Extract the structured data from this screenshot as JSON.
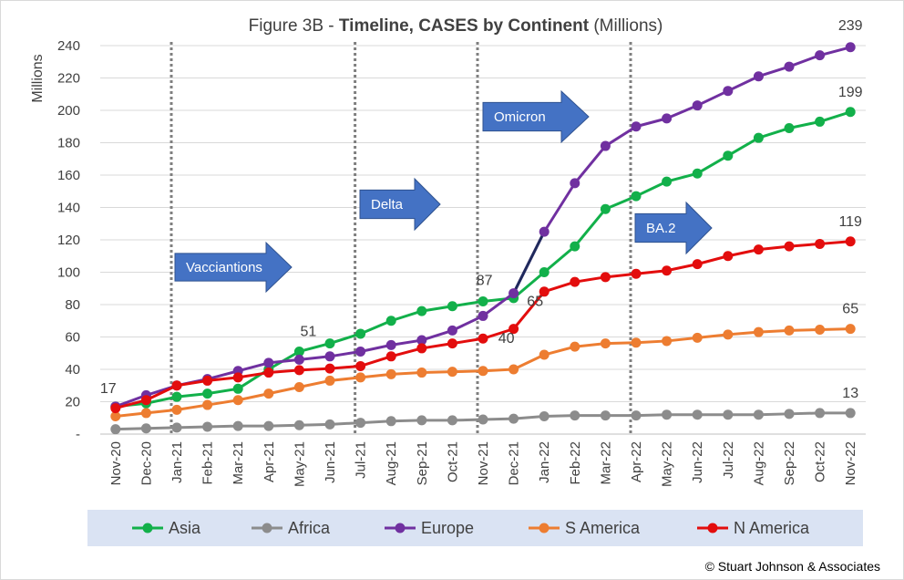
{
  "chart_data": {
    "type": "line",
    "title_prefix": "Figure 3B - ",
    "title_bold": "Timeline, CASES by Continent",
    "title_suffix": " (Millions)",
    "ylabel": "Millions",
    "ylim": [
      0,
      240
    ],
    "yticks": [
      "-",
      "20",
      "40",
      "60",
      "80",
      "100",
      "120",
      "140",
      "160",
      "180",
      "200",
      "220",
      "240"
    ],
    "grid": true,
    "legend_position": "bottom",
    "categories": [
      "Nov-20",
      "Dec-20",
      "Jan-21",
      "Feb-21",
      "Mar-21",
      "Apr-21",
      "May-21",
      "Jun-21",
      "Jul-21",
      "Aug-21",
      "Sep-21",
      "Oct-21",
      "Nov-21",
      "Dec-21",
      "Jan-22",
      "Feb-22",
      "Mar-22",
      "Apr-22",
      "May-22",
      "Jun-22",
      "Jul-22",
      "Aug-22",
      "Sep-22",
      "Oct-22",
      "Nov-22"
    ],
    "series": [
      {
        "name": "Asia",
        "color": "#12b04a",
        "values": [
          17,
          19,
          23,
          25,
          28,
          40,
          51,
          56,
          62,
          70,
          76,
          79,
          82,
          84,
          100,
          116,
          139,
          147,
          156,
          161,
          172,
          183,
          189,
          193,
          199
        ]
      },
      {
        "name": "Africa",
        "color": "#8c8c8c",
        "values": [
          3,
          3.5,
          4,
          4.5,
          5,
          5,
          5.5,
          6,
          7,
          8,
          8.5,
          8.5,
          9,
          9.5,
          11,
          11.5,
          11.5,
          11.5,
          12,
          12,
          12,
          12,
          12.5,
          13,
          13
        ]
      },
      {
        "name": "Europe",
        "color": "#7030a0",
        "values": [
          17,
          24,
          30,
          34,
          39,
          44,
          46,
          48,
          51,
          55,
          58,
          64,
          73,
          87,
          125,
          155,
          178,
          190,
          195,
          203,
          212,
          221,
          227,
          234,
          239
        ]
      },
      {
        "name": "S America",
        "color": "#ed7d31",
        "values": [
          11,
          13,
          15,
          18,
          21,
          25,
          29,
          33,
          35,
          37,
          38,
          38.5,
          39,
          40,
          49,
          54,
          56,
          56.5,
          57.5,
          59.5,
          61.5,
          63,
          64,
          64.5,
          65
        ]
      },
      {
        "name": "N America",
        "color": "#e30d0d",
        "values": [
          16,
          21,
          30,
          33,
          35,
          38,
          39.5,
          40.5,
          42,
          48,
          53,
          56,
          59,
          65,
          88,
          94,
          97,
          99,
          101,
          105,
          110,
          114,
          116,
          117.5,
          119
        ]
      }
    ],
    "data_labels": [
      {
        "text": "17",
        "category": "Nov-20",
        "value": 17
      },
      {
        "text": "51",
        "category": "May-21",
        "value": 51
      },
      {
        "text": "87",
        "category": "Dec-21",
        "value": 87
      },
      {
        "text": "40",
        "category": "Dec-21",
        "value": 40
      },
      {
        "text": "65",
        "category": "Jan-22",
        "value": 65
      },
      {
        "text": "239",
        "category": "Nov-22",
        "value": 239
      },
      {
        "text": "199",
        "category": "Nov-22",
        "value": 199
      },
      {
        "text": "119",
        "category": "Nov-22",
        "value": 119
      },
      {
        "text": "65",
        "category": "Nov-22",
        "value": 65
      },
      {
        "text": "13",
        "category": "Nov-22",
        "value": 13
      }
    ],
    "vertical_markers": [
      "Jan-21",
      "Jul-21",
      "Nov-21",
      "Apr-22"
    ],
    "annotations": [
      {
        "text": "Vacciantions",
        "color": "#4472c4"
      },
      {
        "text": "Delta",
        "color": "#4472c4"
      },
      {
        "text": "Omicron",
        "color": "#4472c4"
      },
      {
        "text": "BA.2",
        "color": "#4472c4"
      }
    ],
    "highlight_segment": {
      "series": "Europe",
      "from": "Dec-21",
      "to": "Jan-22",
      "color": "#1f2a5c"
    }
  },
  "copyright": "© Stuart Johnson & Associates"
}
